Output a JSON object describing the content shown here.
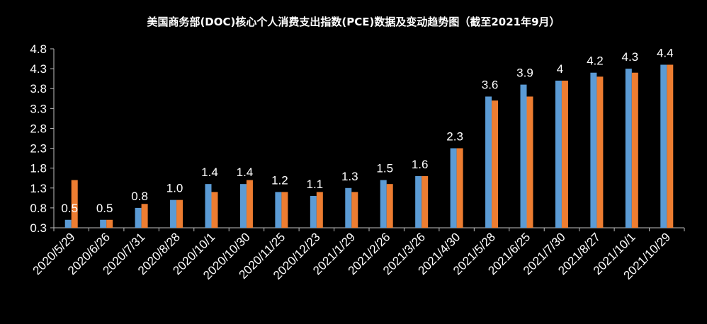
{
  "chart_data": {
    "type": "bar",
    "title": "美国商务部(DOC)核心个人消费支出指数(PCE)数据及变动趋势图（截至2021年9月）",
    "categories": [
      "2020/5/29",
      "2020/6/26",
      "2020/7/31",
      "2020/8/28",
      "2020/10/1",
      "2020/10/30",
      "2020/11/25",
      "2020/12/23",
      "2021/1/29",
      "2021/2/26",
      "2021/3/26",
      "2021/4/30",
      "2021/5/28",
      "2021/6/25",
      "2021/7/30",
      "2021/8/27",
      "2021/10/1",
      "2021/10/29"
    ],
    "series": [
      {
        "values": [
          0.5,
          0.5,
          0.8,
          1.0,
          1.4,
          1.4,
          1.2,
          1.1,
          1.3,
          1.5,
          1.6,
          2.3,
          3.6,
          3.9,
          4.0,
          4.2,
          4.3,
          4.4
        ],
        "labels": [
          "0.5",
          "0.5",
          "0.8",
          "1.0",
          "1.4",
          "1.4",
          "1.2",
          "1.1",
          "1.3",
          "1.5",
          "1.6",
          "2.3",
          "3.6",
          "3.9",
          "4",
          "4.2",
          "4.3",
          "4.4"
        ],
        "color": "#5B9BD5"
      },
      {
        "values": [
          1.5,
          0.5,
          0.9,
          1.0,
          1.2,
          1.5,
          1.2,
          1.2,
          1.2,
          1.4,
          1.6,
          2.3,
          3.5,
          3.6,
          4.0,
          4.1,
          4.2,
          4.4
        ],
        "color": "#ED7D31"
      }
    ],
    "yticks": [
      "0.3",
      "0.8",
      "1.3",
      "1.8",
      "2.3",
      "2.8",
      "3.3",
      "3.8",
      "4.3",
      "4.8"
    ],
    "ylim": [
      0.3,
      4.8
    ],
    "grid": false
  }
}
